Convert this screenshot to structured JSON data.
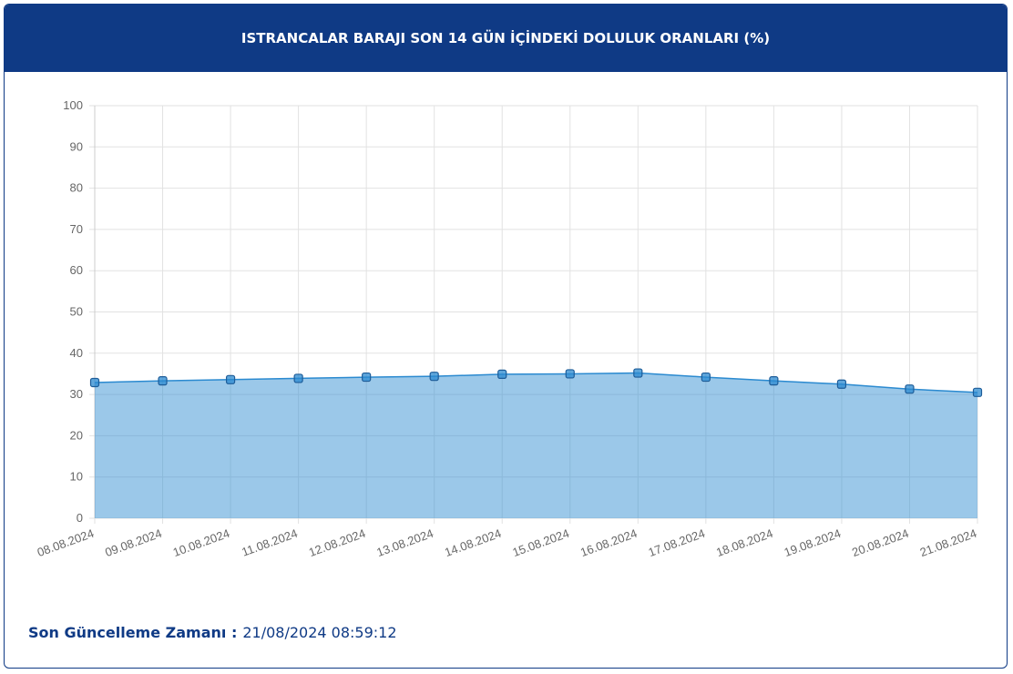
{
  "chart_data": {
    "type": "area",
    "title": "ISTRANCALAR BARAJI SON 14 GÜN İÇİNDEKİ DOLULUK ORANLARI (%)",
    "categories": [
      "08.08.2024",
      "09.08.2024",
      "10.08.2024",
      "11.08.2024",
      "12.08.2024",
      "13.08.2024",
      "14.08.2024",
      "15.08.2024",
      "16.08.2024",
      "17.08.2024",
      "18.08.2024",
      "19.08.2024",
      "20.08.2024",
      "21.08.2024"
    ],
    "values": [
      32.9,
      33.3,
      33.6,
      33.9,
      34.2,
      34.4,
      34.9,
      35.0,
      35.2,
      34.2,
      33.3,
      32.5,
      31.3,
      30.5
    ],
    "color": "#2b8ad0",
    "ylim": [
      0,
      100
    ],
    "yticks": [
      0,
      10,
      20,
      30,
      40,
      50,
      60,
      70,
      80,
      90,
      100
    ],
    "grid": true
  },
  "footer_label": "Son Güncelleme Zamanı :",
  "footer_value": "21/08/2024 08:59:12"
}
